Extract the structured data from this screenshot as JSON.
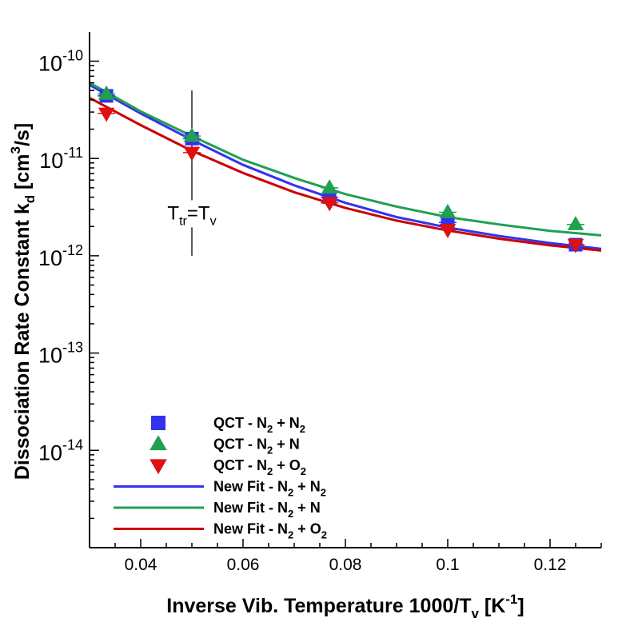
{
  "chart_data": {
    "type": "scatter",
    "title": "",
    "xlabel": {
      "main": "Inverse Vib. Temperature 1000/T",
      "sub": "v",
      "tail": " [K",
      "sup": "-1",
      "end": "]"
    },
    "ylabel": {
      "main": "Dissociation Rate Constant k",
      "sub": "d",
      "mid": " [cm",
      "sup": "3",
      "end": "/s]"
    },
    "xlim": [
      0.03,
      0.13
    ],
    "ylim_exp": [
      -15,
      -9.7
    ],
    "x_ticks": [
      {
        "value": 0.04,
        "label": "0.04"
      },
      {
        "value": 0.06,
        "label": "0.06"
      },
      {
        "value": 0.08,
        "label": "0.08"
      },
      {
        "value": 0.1,
        "label": "0.1"
      },
      {
        "value": 0.12,
        "label": "0.12"
      }
    ],
    "y_ticks": [
      {
        "exp": -10,
        "base": "10",
        "sup": "-10"
      },
      {
        "exp": -11,
        "base": "10",
        "sup": "-11"
      },
      {
        "exp": -12,
        "base": "10",
        "sup": "-12"
      },
      {
        "exp": -13,
        "base": "10",
        "sup": "-13"
      },
      {
        "exp": -14,
        "base": "10",
        "sup": "-14"
      }
    ],
    "grid": false,
    "series": [
      {
        "name": "QCT - N2 + N2",
        "kind": "marker",
        "marker": "square",
        "color": "#3333ee",
        "points": [
          [
            0.0333,
            4.4e-11
          ],
          [
            0.05,
            1.6e-11
          ],
          [
            0.0769,
            4e-12
          ],
          [
            0.1,
            2.2e-12
          ],
          [
            0.125,
            1.3e-12
          ]
        ]
      },
      {
        "name": "QCT - N2 + N",
        "kind": "marker",
        "marker": "triangle-up",
        "color": "#20a050",
        "points": [
          [
            0.0333,
            4.6e-11
          ],
          [
            0.05,
            1.7e-11
          ],
          [
            0.0769,
            5e-12
          ],
          [
            0.1,
            2.8e-12
          ],
          [
            0.125,
            2.1e-12
          ]
        ]
      },
      {
        "name": "QCT - N2 + O2",
        "kind": "marker",
        "marker": "triangle-down",
        "color": "#dd1111",
        "points": [
          [
            0.0333,
            2.9e-11
          ],
          [
            0.05,
            1.15e-11
          ],
          [
            0.0769,
            3.5e-12
          ],
          [
            0.1,
            1.85e-12
          ],
          [
            0.125,
            1.3e-12
          ]
        ]
      },
      {
        "name": "New Fit - N2 + N2",
        "kind": "line",
        "color": "#3333ee",
        "points": [
          [
            0.03,
            5.7e-11
          ],
          [
            0.04,
            2.9e-11
          ],
          [
            0.05,
            1.55e-11
          ],
          [
            0.06,
            8.6e-12
          ],
          [
            0.07,
            5.3e-12
          ],
          [
            0.08,
            3.5e-12
          ],
          [
            0.09,
            2.5e-12
          ],
          [
            0.1,
            1.95e-12
          ],
          [
            0.11,
            1.6e-12
          ],
          [
            0.12,
            1.35e-12
          ],
          [
            0.13,
            1.18e-12
          ]
        ]
      },
      {
        "name": "New Fit - N2 + N",
        "kind": "line",
        "color": "#20a050",
        "points": [
          [
            0.03,
            6e-11
          ],
          [
            0.04,
            3.05e-11
          ],
          [
            0.05,
            1.7e-11
          ],
          [
            0.06,
            9.7e-12
          ],
          [
            0.07,
            6.3e-12
          ],
          [
            0.08,
            4.3e-12
          ],
          [
            0.09,
            3.2e-12
          ],
          [
            0.1,
            2.5e-12
          ],
          [
            0.11,
            2.1e-12
          ],
          [
            0.12,
            1.8e-12
          ],
          [
            0.13,
            1.62e-12
          ]
        ]
      },
      {
        "name": "New Fit - N2 + O2",
        "kind": "line",
        "color": "#cc0000",
        "points": [
          [
            0.03,
            4.2e-11
          ],
          [
            0.04,
            2.2e-11
          ],
          [
            0.05,
            1.2e-11
          ],
          [
            0.06,
            7.1e-12
          ],
          [
            0.07,
            4.5e-12
          ],
          [
            0.08,
            3.1e-12
          ],
          [
            0.09,
            2.3e-12
          ],
          [
            0.1,
            1.82e-12
          ],
          [
            0.11,
            1.5e-12
          ],
          [
            0.12,
            1.28e-12
          ],
          [
            0.13,
            1.13e-12
          ]
        ]
      }
    ],
    "legend": {
      "placement": "bottom-left",
      "entries": [
        {
          "prefix": "QCT - N",
          "sub1": "2",
          "mid": " + N",
          "sub2": "2"
        },
        {
          "prefix": "QCT - N",
          "sub1": "2",
          "mid": " + N",
          "sub2": ""
        },
        {
          "prefix": "QCT - N",
          "sub1": "2",
          "mid": " + O",
          "sub2": "2"
        },
        {
          "prefix": "New Fit - N",
          "sub1": "2",
          "mid": " + N",
          "sub2": "2"
        },
        {
          "prefix": "New Fit - N",
          "sub1": "2",
          "mid": " + N",
          "sub2": ""
        },
        {
          "prefix": "New Fit - N",
          "sub1": "2",
          "mid": " + O",
          "sub2": "2"
        }
      ]
    },
    "annotation": {
      "x": 0.05,
      "y_from": 1e-12,
      "y_to": 5e-11,
      "label_at_y": 2.75e-12,
      "main": "T",
      "sub1": "tr",
      "mid": "=T",
      "sub2": "v"
    }
  }
}
